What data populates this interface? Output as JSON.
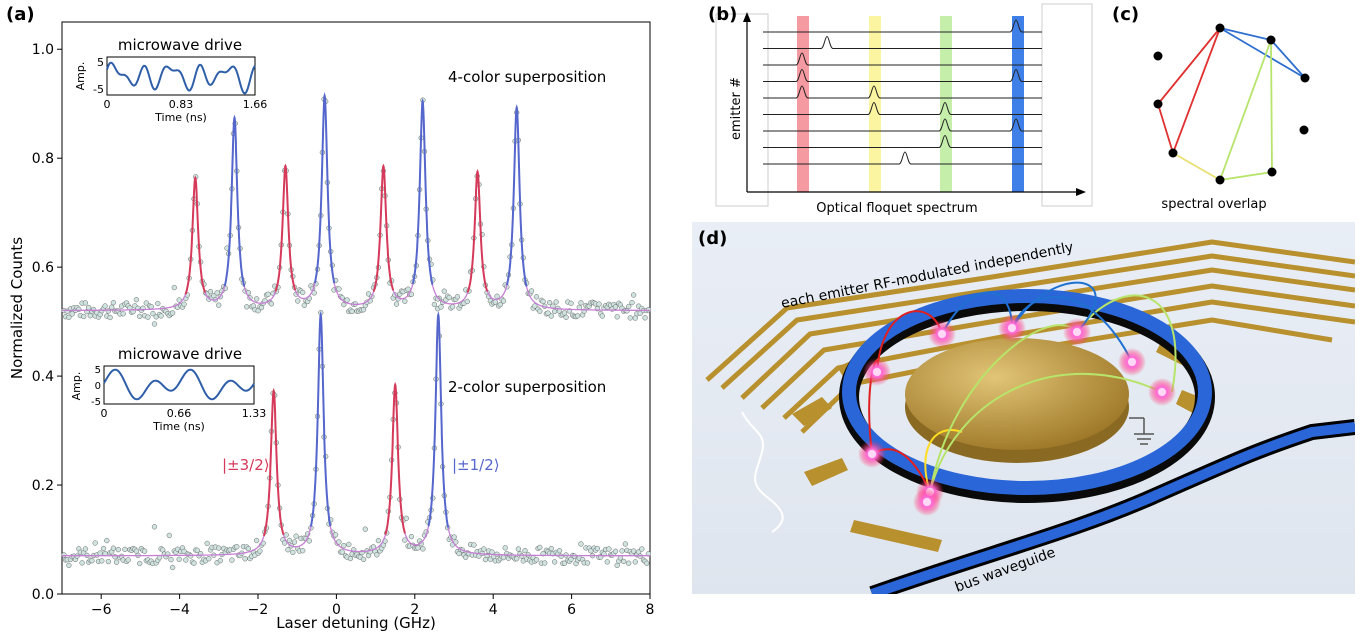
{
  "panels": {
    "a": {
      "label": "(a)",
      "xlabel": "Laser detuning (GHz)",
      "ylabel": "Normalized Counts",
      "xticks": [
        "−6",
        "−4",
        "−2",
        "0",
        "2",
        "4",
        "6",
        "8"
      ],
      "yticks": [
        "0.0",
        "0.2",
        "0.4",
        "0.6",
        "0.8",
        "1.0"
      ],
      "top_annotation": "4-color superposition",
      "bottom_annotation": "2-color superposition",
      "state_left": "|±3/2⟩",
      "state_right": "|±1/2⟩",
      "inset_top": {
        "title": "microwave drive",
        "ylabel": "Amp.",
        "xlabel": "Time (ns)",
        "xticks": [
          "0",
          "0.83",
          "1.66"
        ],
        "yticks": [
          "5",
          "-5"
        ]
      },
      "inset_bottom": {
        "title": "microwave drive",
        "ylabel": "Amp.",
        "xlabel": "Time (ns)",
        "xticks": [
          "0",
          "0.66",
          "1.33"
        ],
        "yticks": [
          "5",
          "0",
          "-5"
        ]
      }
    },
    "b": {
      "label": "(b)",
      "xlabel": "Optical floquet spectrum",
      "ylabel": "emitter #"
    },
    "c": {
      "label": "(c)",
      "caption": "spectral overlap"
    },
    "d": {
      "label": "(d)",
      "text_rf": "each emitter RF-modulated independently",
      "text_bus": "bus waveguide"
    }
  },
  "colors": {
    "red": "#d63a5a",
    "blue": "#5566cc",
    "pink_fit": "#c77fd6",
    "scatter": "#cfe3e0",
    "gold": "#b8902e",
    "waveguide": "#2a66d8",
    "band_red": "#f59aa0",
    "band_yellow": "#fbf4a0",
    "band_green": "#c4eeaa",
    "band_blue": "#3f80e8"
  },
  "chart_data": [
    {
      "type": "line",
      "title": "",
      "xlabel": "Laser detuning (GHz)",
      "ylabel": "Normalized Counts",
      "xlim": [
        -7,
        8
      ],
      "ylim": [
        0.0,
        1.05
      ],
      "series": [
        {
          "name": "4-color superposition",
          "baseline": 0.52,
          "peaks": [
            {
              "x": -3.6,
              "y": 0.76,
              "state": "±3/2"
            },
            {
              "x": -2.6,
              "y": 0.87,
              "state": "±1/2"
            },
            {
              "x": -1.3,
              "y": 0.78,
              "state": "±3/2"
            },
            {
              "x": -0.3,
              "y": 0.91,
              "state": "±1/2"
            },
            {
              "x": 1.2,
              "y": 0.78,
              "state": "±3/2"
            },
            {
              "x": 2.2,
              "y": 0.9,
              "state": "±1/2"
            },
            {
              "x": 3.6,
              "y": 0.77,
              "state": "±3/2"
            },
            {
              "x": 4.6,
              "y": 0.89,
              "state": "±1/2"
            }
          ]
        },
        {
          "name": "2-color superposition",
          "baseline": 0.07,
          "peaks": [
            {
              "x": -1.6,
              "y": 0.37,
              "state": "±3/2"
            },
            {
              "x": -0.4,
              "y": 0.51,
              "state": "±1/2"
            },
            {
              "x": 1.5,
              "y": 0.38,
              "state": "±3/2"
            },
            {
              "x": 2.6,
              "y": 0.51,
              "state": "±1/2"
            }
          ]
        }
      ]
    },
    {
      "type": "line",
      "title": "microwave drive",
      "xlabel": "Time (ns)",
      "ylabel": "Amp.",
      "xlim": [
        0,
        1.66
      ],
      "ylim": [
        -6,
        6
      ]
    },
    {
      "type": "line",
      "title": "microwave drive",
      "xlabel": "Time (ns)",
      "ylabel": "Amp.",
      "xlim": [
        0,
        1.33
      ],
      "ylim": [
        -6,
        6
      ]
    }
  ]
}
